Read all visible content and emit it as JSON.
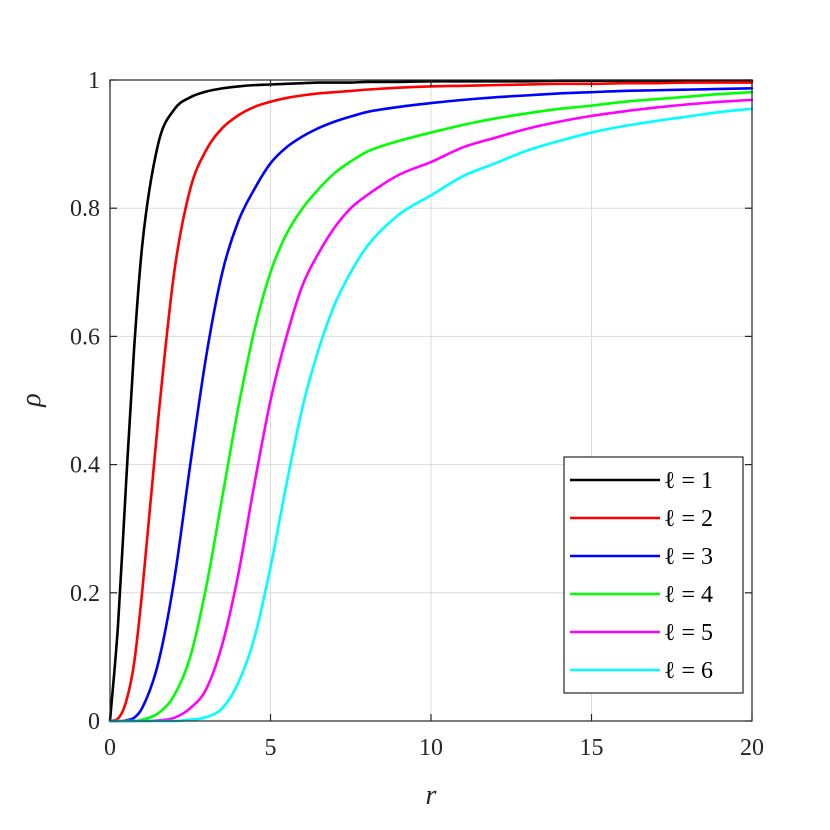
{
  "chart_data": {
    "type": "line",
    "xlabel": "r",
    "ylabel": "ρ",
    "xlim": [
      0,
      20
    ],
    "ylim": [
      0,
      1
    ],
    "xticks": [
      "0",
      "5",
      "10",
      "15",
      "20"
    ],
    "yticks": [
      "0",
      "0.2",
      "0.4",
      "0.6",
      "0.8",
      "1"
    ],
    "grid": true,
    "legend_position": "bottom-right",
    "x": [
      0,
      0.25,
      0.5,
      0.75,
      1,
      1.5,
      2,
      2.5,
      3,
      3.5,
      4,
      4.5,
      5,
      5.5,
      6,
      6.5,
      7,
      7.5,
      8,
      9,
      10,
      11,
      12,
      13,
      14,
      15,
      16,
      17,
      18,
      19,
      20
    ],
    "series": [
      {
        "name": "ℓ = 1",
        "color": "#000000",
        "values": [
          0,
          0.15,
          0.37,
          0.58,
          0.74,
          0.9,
          0.954,
          0.973,
          0.982,
          0.987,
          0.99,
          0.992,
          0.993,
          0.994,
          0.995,
          0.996,
          0.996,
          0.996,
          0.997,
          0.997,
          0.998,
          0.998,
          0.998,
          0.998,
          0.999,
          0.999,
          0.999,
          0.999,
          0.999,
          0.999,
          0.999
        ]
      },
      {
        "name": "ℓ = 2",
        "color": "#ff0000",
        "values": [
          0,
          0.004,
          0.03,
          0.09,
          0.2,
          0.47,
          0.7,
          0.83,
          0.891,
          0.925,
          0.945,
          0.958,
          0.966,
          0.972,
          0.976,
          0.979,
          0.981,
          0.983,
          0.985,
          0.988,
          0.99,
          0.991,
          0.992,
          0.993,
          0.994,
          0.994,
          0.995,
          0.995,
          0.996,
          0.996,
          0.996
        ]
      },
      {
        "name": "ℓ = 3",
        "color": "#0000ff",
        "values": [
          0,
          0,
          0.001,
          0.005,
          0.02,
          0.09,
          0.22,
          0.4,
          0.57,
          0.7,
          0.78,
          0.83,
          0.87,
          0.895,
          0.912,
          0.925,
          0.935,
          0.943,
          0.95,
          0.958,
          0.964,
          0.969,
          0.973,
          0.976,
          0.979,
          0.981,
          0.983,
          0.984,
          0.985,
          0.986,
          0.987
        ]
      },
      {
        "name": "ℓ = 4",
        "color": "#00ff00",
        "values": [
          0,
          0,
          0,
          0,
          0.002,
          0.012,
          0.04,
          0.1,
          0.21,
          0.35,
          0.49,
          0.61,
          0.7,
          0.76,
          0.8,
          0.83,
          0.855,
          0.873,
          0.888,
          0.905,
          0.918,
          0.93,
          0.94,
          0.948,
          0.955,
          0.96,
          0.966,
          0.97,
          0.974,
          0.978,
          0.981
        ]
      },
      {
        "name": "ℓ = 5",
        "color": "#ff00ff",
        "values": [
          0,
          0,
          0,
          0,
          0,
          0.001,
          0.005,
          0.02,
          0.05,
          0.12,
          0.23,
          0.37,
          0.5,
          0.6,
          0.68,
          0.73,
          0.77,
          0.8,
          0.82,
          0.852,
          0.872,
          0.895,
          0.91,
          0.924,
          0.935,
          0.944,
          0.951,
          0.957,
          0.962,
          0.966,
          0.969
        ]
      },
      {
        "name": "ℓ = 6",
        "color": "#00ffff",
        "values": [
          0,
          0,
          0,
          0,
          0,
          0,
          0,
          0.002,
          0.006,
          0.02,
          0.06,
          0.13,
          0.24,
          0.37,
          0.49,
          0.58,
          0.65,
          0.7,
          0.74,
          0.79,
          0.82,
          0.85,
          0.87,
          0.89,
          0.905,
          0.918,
          0.928,
          0.936,
          0.943,
          0.95,
          0.955
        ]
      }
    ]
  }
}
